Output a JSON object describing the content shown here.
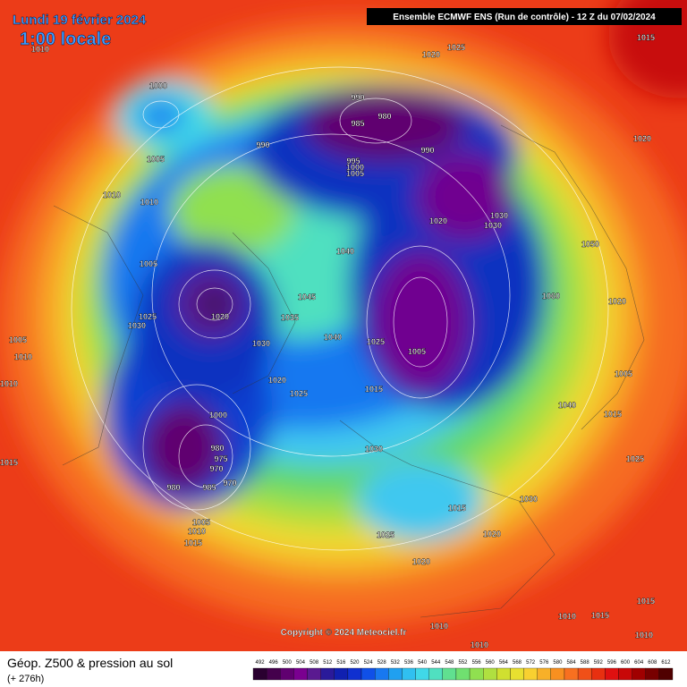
{
  "header": {
    "date": "Lundi 19 février 2024",
    "time": "1:00 locale",
    "model": "Ensemble ECMWF ENS  (Run de contrôle)  -  12 Z du 07/02/2024"
  },
  "footer": {
    "title": "Géop. Z500 & pression au sol",
    "lead": "(+ 276h)",
    "copyright": "Copyright © 2024 Meteociel.fr"
  },
  "scale": {
    "values": [
      "492",
      "496",
      "500",
      "504",
      "508",
      "512",
      "516",
      "520",
      "524",
      "528",
      "532",
      "536",
      "540",
      "544",
      "548",
      "552",
      "556",
      "560",
      "564",
      "568",
      "572",
      "576",
      "580",
      "584",
      "588",
      "592",
      "596",
      "600",
      "604",
      "608",
      "612"
    ],
    "colors": [
      "#2a0030",
      "#44004c",
      "#600070",
      "#7a0090",
      "#5a1a90",
      "#2a1a9a",
      "#1020b0",
      "#1030d0",
      "#1050e8",
      "#1878f0",
      "#20a0f0",
      "#30c0f0",
      "#40d8e8",
      "#50e0c0",
      "#60e090",
      "#70e070",
      "#90e050",
      "#b0e040",
      "#d0e030",
      "#e8e030",
      "#f8d030",
      "#f8b028",
      "#f89020",
      "#f87020",
      "#f05018",
      "#e83010",
      "#e01010",
      "#c80808",
      "#a00000",
      "#780000",
      "#500000"
    ]
  },
  "pressure_labels": [
    "1010",
    "1020",
    "1025",
    "1015",
    "1000",
    "990",
    "980",
    "985",
    "990",
    "990",
    "1005",
    "1020",
    "995",
    "1000",
    "1005",
    "1010",
    "1010",
    "1020",
    "1030",
    "1030",
    "1040",
    "1005",
    "1020",
    "1045",
    "1025",
    "1030",
    "1040",
    "1025",
    "1005",
    "1015",
    "1000",
    "980",
    "975",
    "970",
    "970",
    "980",
    "985",
    "1005",
    "1010",
    "1015",
    "1015",
    "1010",
    "1030",
    "1015",
    "1025",
    "1020",
    "1030",
    "1020",
    "1025",
    "1015",
    "1040",
    "1050",
    "1060",
    "1020",
    "1005",
    "1010",
    "1015",
    "1015",
    "1010",
    "1010",
    "1010",
    "1035",
    "1030",
    "1020",
    "1025",
    "1005",
    "1010"
  ]
}
